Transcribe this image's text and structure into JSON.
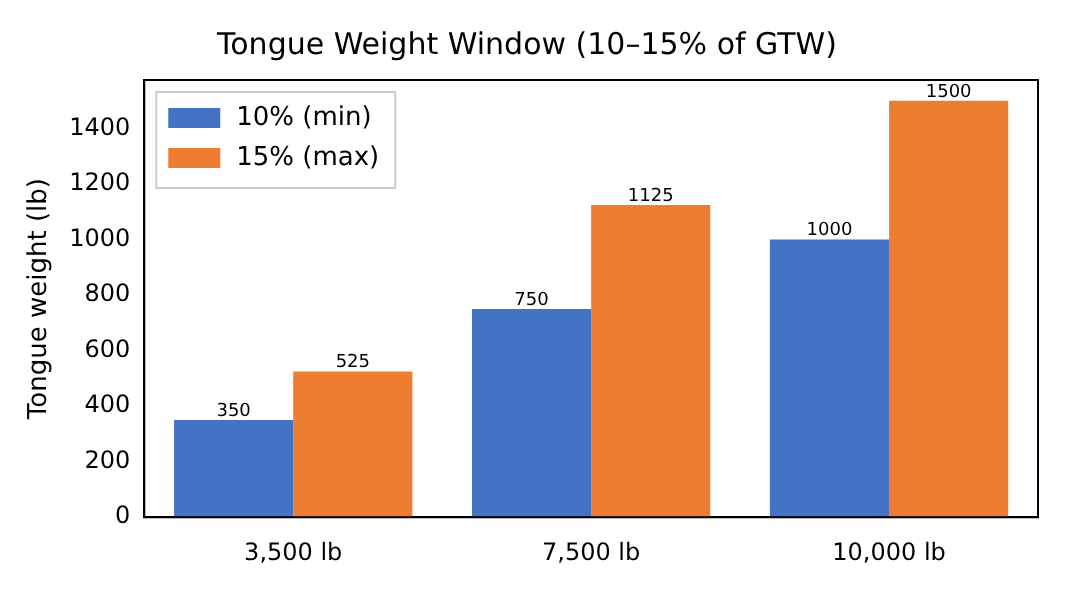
{
  "chart_data": {
    "type": "bar",
    "title": "Tongue Weight Window (10–15% of GTW)",
    "ylabel": "Tongue weight (lb)",
    "categories": [
      "3,500 lb",
      "7,500 lb",
      "10,000 lb"
    ],
    "series": [
      {
        "name": "10% (min)",
        "color": "#4472c4",
        "values": [
          350,
          750,
          1000
        ]
      },
      {
        "name": "15% (max)",
        "color": "#ed7d31",
        "values": [
          525,
          1125,
          1500
        ]
      }
    ],
    "ylim": [
      0,
      1575
    ],
    "yticks": [
      0,
      200,
      400,
      600,
      800,
      1000,
      1200,
      1400
    ],
    "data_labels": true,
    "legend": "top left",
    "grid": false
  }
}
